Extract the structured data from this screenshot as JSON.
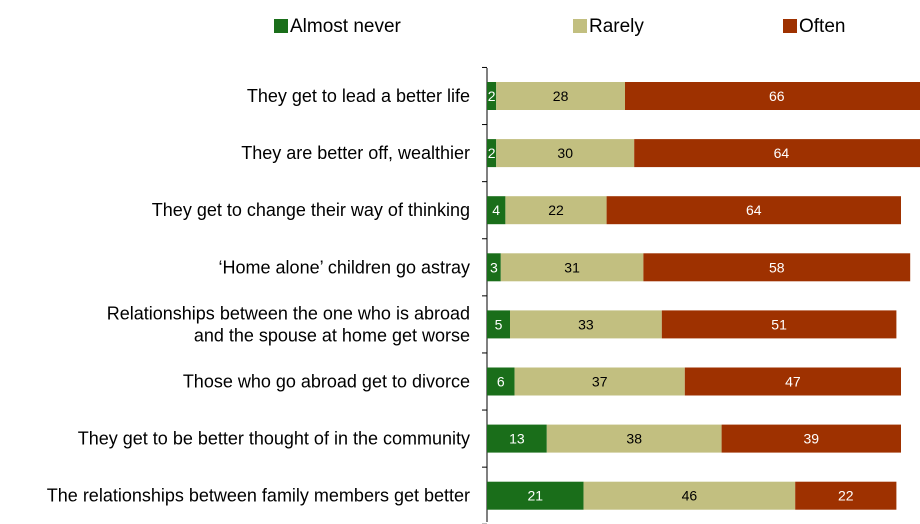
{
  "chart_data": {
    "type": "bar",
    "orientation": "horizontal",
    "stacked": true,
    "legend_position": "top",
    "grid": false,
    "xlim": [
      0,
      100
    ],
    "categories": [
      [
        "They get to lead a better life"
      ],
      [
        "They are better off, wealthier"
      ],
      [
        "They get to change their way of thinking"
      ],
      [
        "‘Home alone’ children go astray"
      ],
      [
        "Relationships between the one who is abroad",
        "and the spouse at home get worse"
      ],
      [
        "Those who go abroad get to divorce"
      ],
      [
        "They get to be better thought of in the community"
      ],
      [
        "The relationships between family members get better"
      ]
    ],
    "series": [
      {
        "name": "Almost never",
        "color": "#1a6e1a",
        "label_color": "#ffffff",
        "values": [
          2,
          2,
          4,
          3,
          5,
          6,
          13,
          21
        ]
      },
      {
        "name": "Rarely",
        "color": "#c2bf80",
        "label_color": "#000000",
        "values": [
          28,
          30,
          22,
          31,
          33,
          37,
          38,
          46
        ]
      },
      {
        "name": "Often",
        "color": "#9e3100",
        "label_color": "#ffffff",
        "values": [
          66,
          64,
          64,
          58,
          51,
          47,
          39,
          22
        ]
      }
    ]
  }
}
